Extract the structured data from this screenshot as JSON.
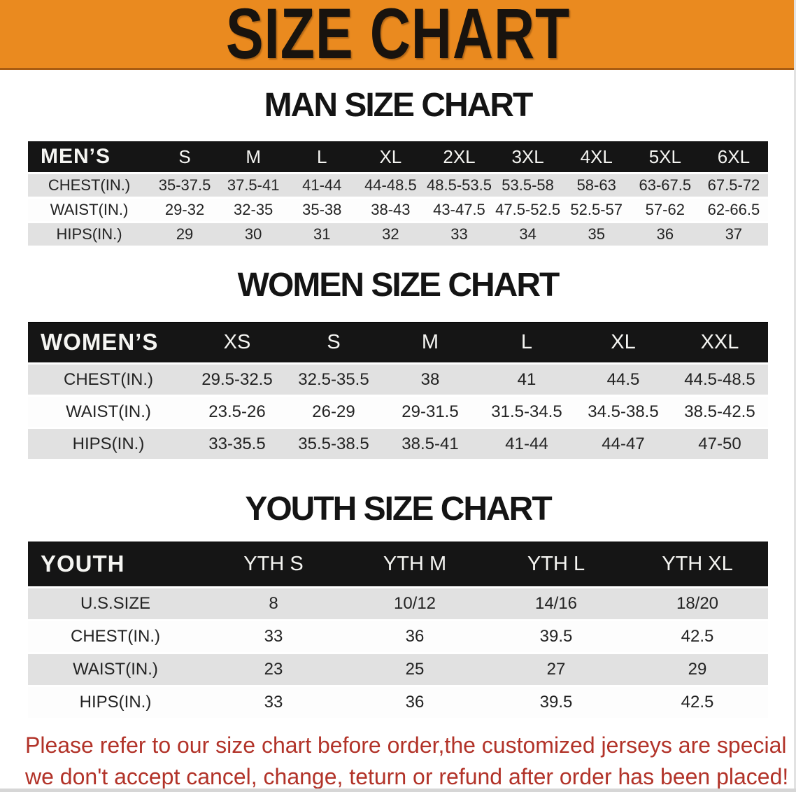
{
  "banner": {
    "title": "SIZE CHART",
    "bg_color": "#ea8a1f",
    "text_color": "#18130e"
  },
  "men": {
    "heading": "MAN SIZE CHART",
    "header": [
      "MEN’S",
      "S",
      "M",
      "L",
      "XL",
      "2XL",
      "3XL",
      "4XL",
      "5XL",
      "6XL"
    ],
    "rows": [
      {
        "label": "CHEST(IN.)",
        "values": [
          "35-37.5",
          "37.5-41",
          "41-44",
          "44-48.5",
          "48.5-53.5",
          "53.5-58",
          "58-63",
          "63-67.5",
          "67.5-72"
        ]
      },
      {
        "label": "WAIST(IN.)",
        "values": [
          "29-32",
          "32-35",
          "35-38",
          "38-43",
          "43-47.5",
          "47.5-52.5",
          "52.5-57",
          "57-62",
          "62-66.5"
        ]
      },
      {
        "label": "HIPS(IN.)",
        "values": [
          "29",
          "30",
          "31",
          "32",
          "33",
          "34",
          "35",
          "36",
          "37"
        ]
      }
    ]
  },
  "women": {
    "heading": "WOMEN SIZE CHART",
    "header": [
      "WOMEN’S",
      "XS",
      "S",
      "M",
      "L",
      "XL",
      "XXL"
    ],
    "rows": [
      {
        "label": "CHEST(IN.)",
        "values": [
          "29.5-32.5",
          "32.5-35.5",
          "38",
          "41",
          "44.5",
          "44.5-48.5"
        ]
      },
      {
        "label": "WAIST(IN.)",
        "values": [
          "23.5-26",
          "26-29",
          "29-31.5",
          "31.5-34.5",
          "34.5-38.5",
          "38.5-42.5"
        ]
      },
      {
        "label": "HIPS(IN.)",
        "values": [
          "33-35.5",
          "35.5-38.5",
          "38.5-41",
          "41-44",
          "44-47",
          "47-50"
        ]
      }
    ]
  },
  "youth": {
    "heading": "YOUTH SIZE CHART",
    "header": [
      "YOUTH",
      "YTH S",
      "YTH M",
      "YTH L",
      "YTH XL"
    ],
    "rows": [
      {
        "label": "U.S.SIZE",
        "values": [
          "8",
          "10/12",
          "14/16",
          "18/20"
        ]
      },
      {
        "label": "CHEST(IN.)",
        "values": [
          "33",
          "36",
          "39.5",
          "42.5"
        ]
      },
      {
        "label": "WAIST(IN.)",
        "values": [
          "23",
          "25",
          "27",
          "29"
        ]
      },
      {
        "label": "HIPS(IN.)",
        "values": [
          "33",
          "36",
          "39.5",
          "42.5"
        ]
      }
    ]
  },
  "disclaimer": {
    "line1": "Please refer to our size chart before order,the customized jerseys are special products,",
    "line2": "we don't accept cancel, change, teturn or refund after order has been placed!",
    "text_color": "#b23329"
  },
  "colors": {
    "table_header_bg": "#151515",
    "table_header_text": "#f5f5f2",
    "row_alt_bg": "#e1e1e1",
    "row_bg": "#fdfdfd"
  }
}
